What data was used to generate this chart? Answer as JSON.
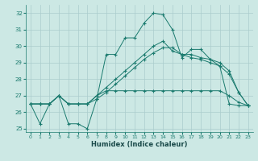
{
  "xlabel": "Humidex (Indice chaleur)",
  "background_color": "#cce8e4",
  "grid_color": "#aacccc",
  "line_color": "#1a7a6e",
  "xlim": [
    -0.5,
    23.5
  ],
  "ylim": [
    24.8,
    32.5
  ],
  "yticks": [
    25,
    26,
    27,
    28,
    29,
    30,
    31,
    32
  ],
  "xticks": [
    0,
    1,
    2,
    3,
    4,
    5,
    6,
    7,
    8,
    9,
    10,
    11,
    12,
    13,
    14,
    15,
    16,
    17,
    18,
    19,
    20,
    21,
    22,
    23
  ],
  "series": [
    [
      26.5,
      25.3,
      26.5,
      27.0,
      25.3,
      25.3,
      25.0,
      26.8,
      29.5,
      29.5,
      30.5,
      30.5,
      31.4,
      32.0,
      31.9,
      31.0,
      29.3,
      29.8,
      29.8,
      29.2,
      28.8,
      26.5,
      26.4,
      26.4
    ],
    [
      26.5,
      26.5,
      26.5,
      27.0,
      26.5,
      26.5,
      26.5,
      27.0,
      27.3,
      27.3,
      27.3,
      27.3,
      27.3,
      27.3,
      27.3,
      27.3,
      27.3,
      27.3,
      27.3,
      27.3,
      27.3,
      27.0,
      26.6,
      26.4
    ],
    [
      26.5,
      26.5,
      26.5,
      27.0,
      26.5,
      26.5,
      26.5,
      27.0,
      27.5,
      28.0,
      28.5,
      29.0,
      29.5,
      30.0,
      30.3,
      29.7,
      29.5,
      29.5,
      29.3,
      29.2,
      29.0,
      28.5,
      27.2,
      26.4
    ],
    [
      26.5,
      26.5,
      26.5,
      27.0,
      26.5,
      26.5,
      26.5,
      26.8,
      27.2,
      27.7,
      28.2,
      28.7,
      29.2,
      29.6,
      29.9,
      29.9,
      29.5,
      29.3,
      29.2,
      29.0,
      28.8,
      28.3,
      27.2,
      26.4
    ]
  ]
}
